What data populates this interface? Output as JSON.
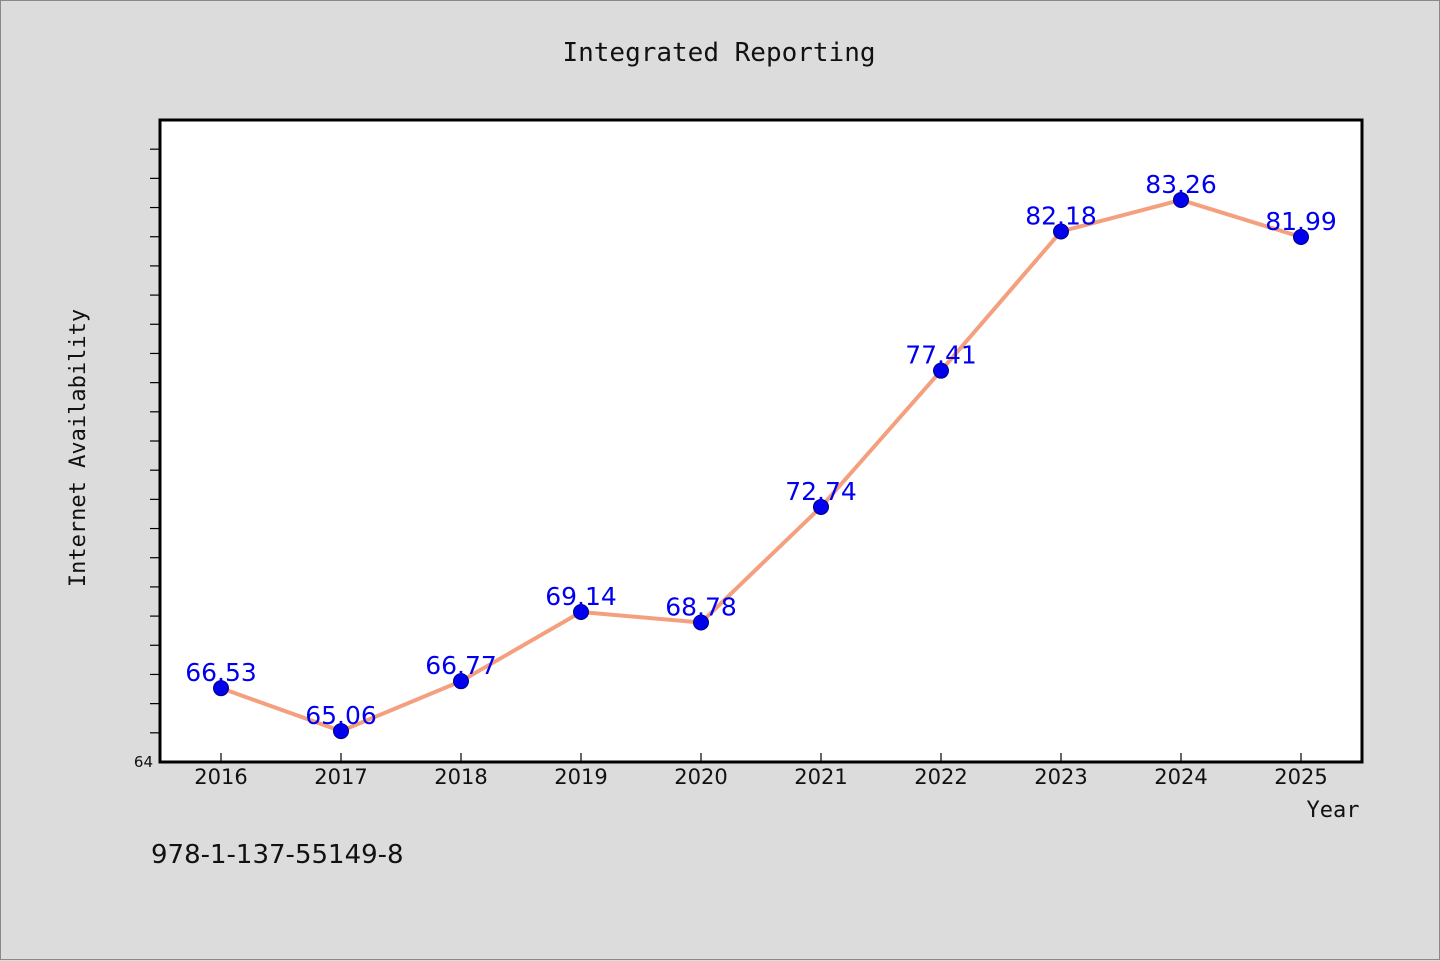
{
  "chart_data": {
    "type": "line",
    "title": "Integrated Reporting",
    "xlabel": "Year",
    "ylabel": "Internet Availability",
    "categories": [
      "2016",
      "2017",
      "2018",
      "2019",
      "2020",
      "2021",
      "2022",
      "2023",
      "2024",
      "2025"
    ],
    "series": [
      {
        "values": [
          66.53,
          65.06,
          66.77,
          69.14,
          68.78,
          72.74,
          77.41,
          82.18,
          83.26,
          81.99
        ],
        "data_labels": [
          "66.53",
          "65.06",
          "66.77",
          "69.14",
          "68.78",
          "72.74",
          "77.41",
          "82.18",
          "83.26",
          "81.99"
        ],
        "line_color": "#f4a07f",
        "marker_color": "#0000ee"
      }
    ],
    "ylim": [
      64,
      86
    ],
    "ytick_labels": [
      "64"
    ],
    "y_minor_tick_step": 1,
    "grid": false,
    "legend": "none"
  },
  "footer": {
    "text": "978-1-137-55149-8"
  },
  "colors": {
    "background": "#dcdcdc",
    "plot_background": "#ffffff",
    "axis": "#000000",
    "line": "#f4a07f",
    "marker": "#0000ee",
    "data_label": "#0000ee"
  }
}
